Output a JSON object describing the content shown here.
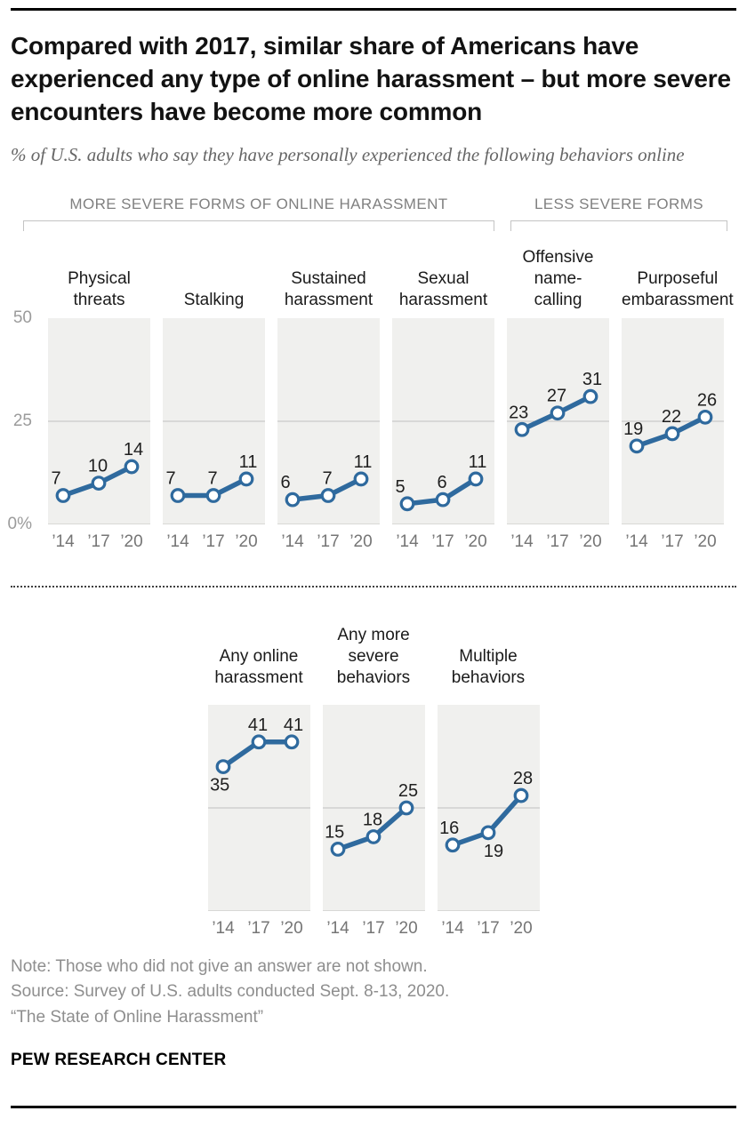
{
  "header": {
    "title": "Compared with 2017, similar share of Americans have experienced any type of online harassment – but more severe encounters have become more common",
    "subtitle": "% of U.S. adults who say they have personally experienced the following behaviors online"
  },
  "chart_data": {
    "type": "line",
    "x": [
      "’14",
      "’17",
      "’20"
    ],
    "ylim": [
      0,
      50
    ],
    "yticks": [
      "50",
      "25",
      "0%"
    ],
    "gridline_at": 25,
    "line_color": "#2F6A9E",
    "panel_bg": "#F0F0EE",
    "groups": [
      {
        "label": "MORE SEVERE FORMS OF ONLINE HARASSMENT",
        "panel_count": 4
      },
      {
        "label": "LESS SEVERE FORMS",
        "panel_count": 2
      }
    ],
    "top_row": [
      {
        "title_lines": [
          "Physical",
          "threats"
        ],
        "values": [
          7,
          10,
          14
        ],
        "label_positions": [
          "above",
          "above",
          "above"
        ]
      },
      {
        "title_lines": [
          "Stalking"
        ],
        "values": [
          7,
          7,
          11
        ],
        "label_positions": [
          "above",
          "above",
          "above"
        ]
      },
      {
        "title_lines": [
          "Sustained",
          "harassment"
        ],
        "values": [
          6,
          7,
          11
        ],
        "label_positions": [
          "above",
          "above",
          "above"
        ]
      },
      {
        "title_lines": [
          "Sexual",
          "harassment"
        ],
        "values": [
          5,
          6,
          11
        ],
        "label_positions": [
          "above",
          "above",
          "above"
        ]
      },
      {
        "title_lines": [
          "Offensive",
          "name-",
          "calling"
        ],
        "values": [
          23,
          27,
          31
        ],
        "label_positions": [
          "above",
          "above",
          "above"
        ]
      },
      {
        "title_lines": [
          "Purposeful",
          "embarassment"
        ],
        "values": [
          19,
          22,
          26
        ],
        "label_positions": [
          "above",
          "above",
          "above"
        ]
      }
    ],
    "bottom_row": [
      {
        "title_lines": [
          "Any online",
          "harassment"
        ],
        "values": [
          35,
          41,
          41
        ],
        "label_positions": [
          "below",
          "above",
          "above"
        ]
      },
      {
        "title_lines": [
          "Any more",
          "severe",
          "behaviors"
        ],
        "values": [
          15,
          18,
          25
        ],
        "label_positions": [
          "above",
          "above",
          "above"
        ]
      },
      {
        "title_lines": [
          "Multiple",
          "behaviors"
        ],
        "values": [
          16,
          19,
          28
        ],
        "label_positions": [
          "above",
          "below",
          "above"
        ]
      }
    ]
  },
  "footer": {
    "note": "Note: Those who did not give an answer are not shown.",
    "source": "Source: Survey of U.S. adults conducted Sept. 8-13, 2020.",
    "report": "“The State of Online Harassment”",
    "brand": "PEW RESEARCH CENTER"
  }
}
